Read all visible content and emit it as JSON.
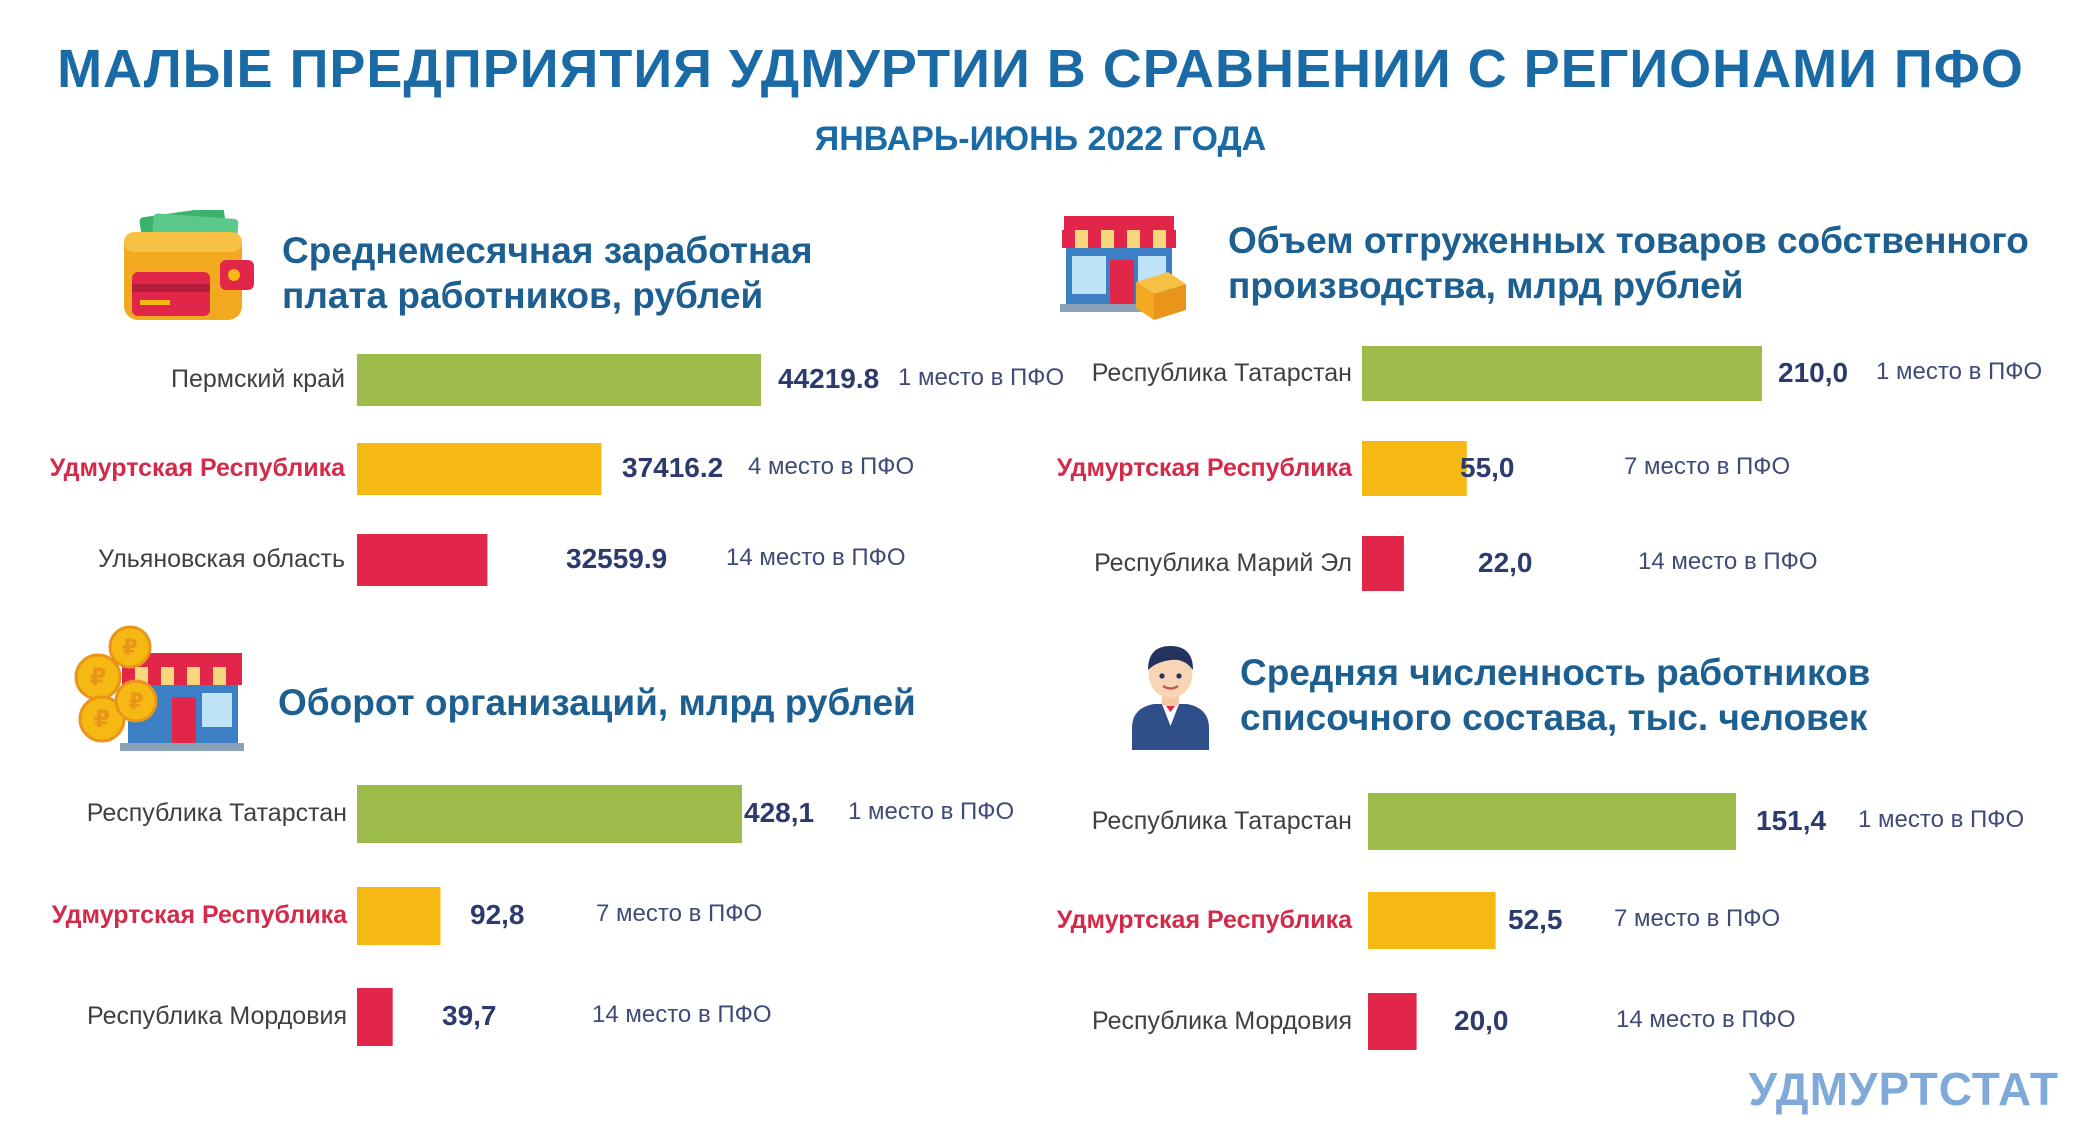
{
  "header": {
    "title": "МАЛЫЕ ПРЕДПРИЯТИЯ УДМУРТИИ В СРАВНЕНИИ С РЕГИОНАМИ ПФО",
    "subtitle": "ЯНВАРЬ-ИЮНЬ 2022 ГОДА"
  },
  "brand": "УДМУРТСТАТ",
  "colors": {
    "leader": "#9cbb4a",
    "udmurtia": "#f6b813",
    "lowest": "#e1264a",
    "title": "#1a6aa5"
  },
  "panels": [
    {
      "title_line1": "Среднемесячная заработная",
      "title_line2": "плата работников, рублей",
      "icon": "wallet-icon",
      "labels": [
        "Пермский край",
        "Удмуртская Республика",
        "Ульяновская область"
      ],
      "value_labels": [
        "44219.8",
        "37416.2",
        "32559.9"
      ],
      "ranks": [
        "1 место в ПФО",
        "4 место в ПФО",
        "14 место в ПФО"
      ]
    },
    {
      "title_line1": "Объем отгруженных товаров собственного",
      "title_line2": "производства, млрд рублей",
      "icon": "store-icon",
      "labels": [
        "Республика Татарстан",
        "Удмуртская Республика",
        "Республика Марий Эл"
      ],
      "value_labels": [
        "210,0",
        "55,0",
        "22,0"
      ],
      "ranks": [
        "1 место в ПФО",
        "7 место в ПФО",
        "14 место в ПФО"
      ]
    },
    {
      "title_line1": "Оборот организаций,  млрд рублей",
      "title_line2": "",
      "icon": "coins-store-icon",
      "labels": [
        "Республика Татарстан",
        "Удмуртская Республика",
        "Республика Мордовия"
      ],
      "value_labels": [
        "428,1",
        "92,8",
        "39,7"
      ],
      "ranks": [
        "1 место в ПФО",
        "7 место в ПФО",
        "14 место в ПФО"
      ]
    },
    {
      "title_line1": "Средняя численность работников",
      "title_line2": "списочного состава, тыс. человек",
      "icon": "worker-icon",
      "labels": [
        "Республика Татарстан",
        "Удмуртская Республика",
        "Республика Мордовия"
      ],
      "value_labels": [
        "151,4",
        "52,5",
        "20,0"
      ],
      "ranks": [
        "1 место в ПФО",
        "7 место в ПФО",
        "14 место в ПФО"
      ]
    }
  ],
  "chart_data": [
    {
      "type": "bar",
      "title": "Среднемесячная заработная плата работников, рублей",
      "categories": [
        "Пермский край",
        "Удмуртская Республика",
        "Ульяновская область"
      ],
      "values": [
        44219.8,
        37416.2,
        32559.9
      ],
      "xlim": [
        27000,
        44219.8
      ]
    },
    {
      "type": "bar",
      "title": "Объем отгруженных товаров собственного производства, млрд рублей",
      "categories": [
        "Республика Татарстан",
        "Удмуртская Республика",
        "Республика Марий Эл"
      ],
      "values": [
        210.0,
        55.0,
        22.0
      ],
      "xlim": [
        0,
        210.0
      ]
    },
    {
      "type": "bar",
      "title": "Оборот организаций,  млрд рублей",
      "categories": [
        "Республика Татарстан",
        "Удмуртская Республика",
        "Республика Мордовия"
      ],
      "values": [
        428.1,
        92.8,
        39.7
      ],
      "xlim": [
        0,
        428.1
      ]
    },
    {
      "type": "bar",
      "title": "Средняя численность работников списочного состава, тыс. человек",
      "categories": [
        "Республика Татарстан",
        "Удмуртская Республика",
        "Республика Мордовия"
      ],
      "values": [
        151.4,
        52.5,
        20.0
      ],
      "xlim": [
        0,
        151.4
      ]
    }
  ]
}
